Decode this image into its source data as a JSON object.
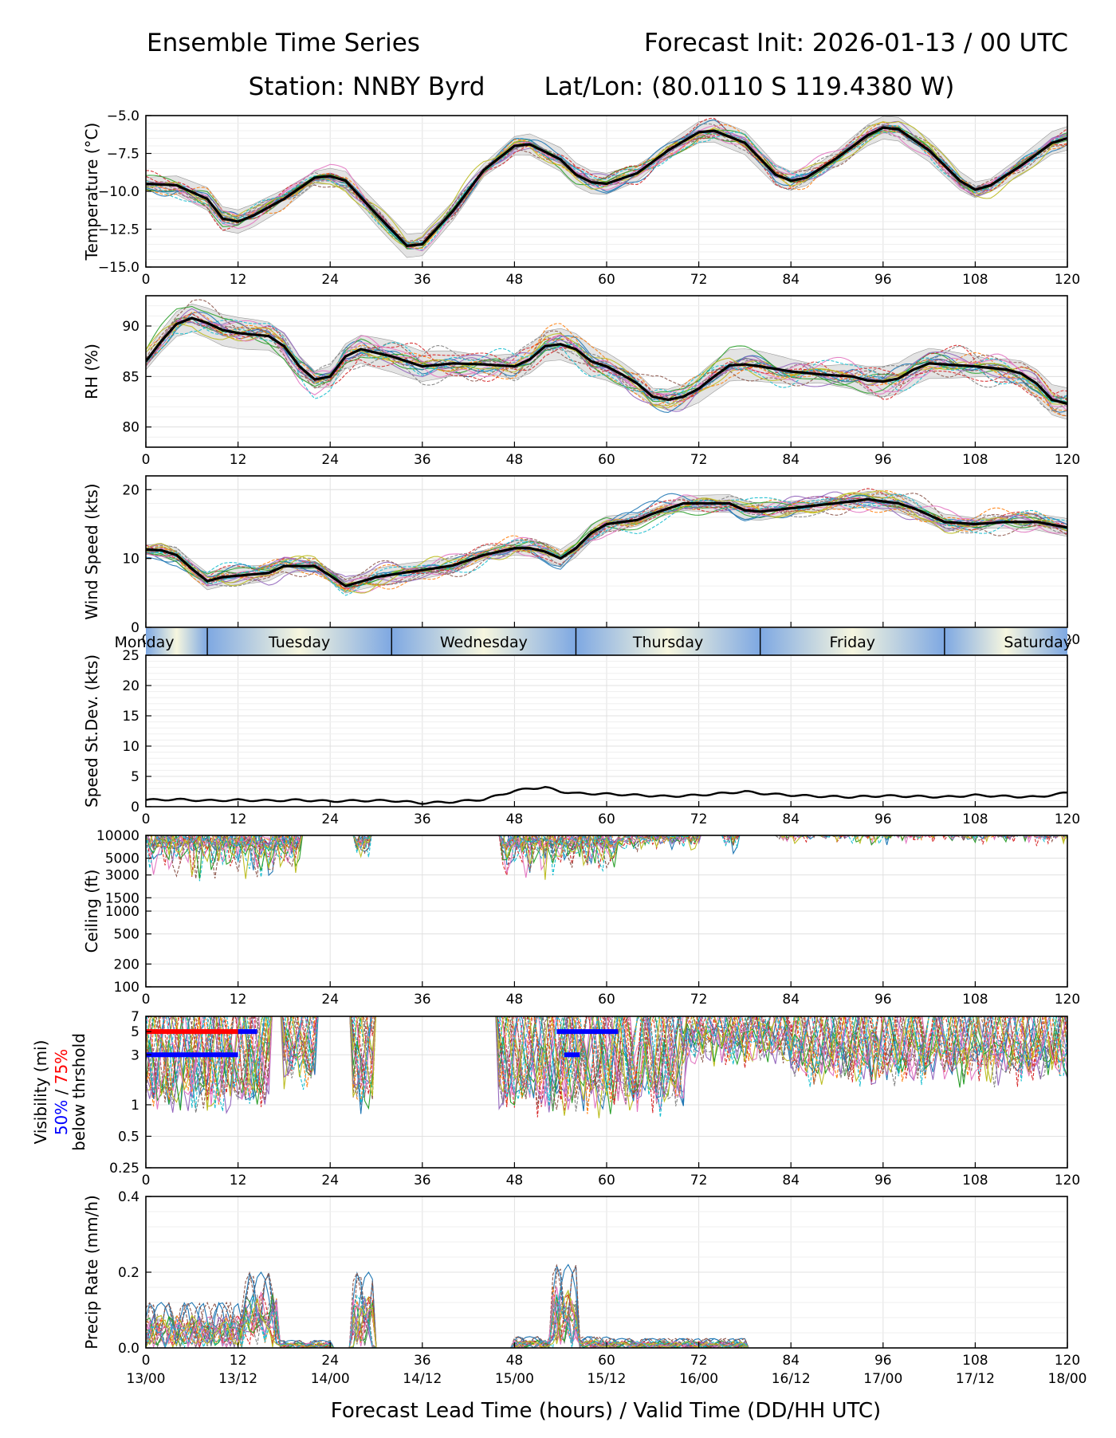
{
  "header": {
    "title_left": "Ensemble Time Series",
    "title_right": "Forecast Init: 2026-01-13 / 00 UTC",
    "station": "Station: NNBY Byrd",
    "latlon": "Lat/Lon: (80.0110 S 119.4380 W)"
  },
  "colors": {
    "mean": "#000000",
    "spread": "#d9d9d9",
    "grid": "#e0e0e0",
    "band_blue": "#8fb3e6",
    "band_cream": "#f7f7e0",
    "vis50": "#0000ff",
    "vis75": "#ff0000",
    "members": [
      "#1f77b4",
      "#ff7f0e",
      "#2ca02c",
      "#d62728",
      "#9467bd",
      "#8c564b",
      "#e377c2",
      "#7f7f7f",
      "#bcbd22",
      "#17becf"
    ]
  },
  "chart_data": [
    {
      "id": "temperature",
      "type": "line",
      "ylabel": "Temperature (°C)",
      "ylim": [
        -15.0,
        -5.0
      ],
      "yticks": [
        -15.0,
        -12.5,
        -10.0,
        -7.5,
        -5.0
      ],
      "ytick_labels": [
        "−15.0",
        "−12.5",
        "−10.0",
        "−7.5",
        "−5.0"
      ],
      "xlim": [
        0,
        120
      ],
      "xticks": [
        0,
        12,
        24,
        36,
        48,
        60,
        72,
        84,
        96,
        108,
        120
      ],
      "mean": {
        "x": [
          0,
          4,
          8,
          10,
          12,
          14,
          18,
          22,
          24,
          26,
          30,
          34,
          36,
          40,
          44,
          48,
          50,
          54,
          56,
          58,
          60,
          64,
          68,
          72,
          74,
          78,
          82,
          84,
          86,
          90,
          94,
          96,
          98,
          102,
          106,
          108,
          110,
          114,
          118,
          120
        ],
        "y": [
          -9.5,
          -9.6,
          -10.5,
          -11.8,
          -12.0,
          -11.6,
          -10.5,
          -9.1,
          -9.0,
          -9.3,
          -11.5,
          -13.6,
          -13.5,
          -11.3,
          -8.6,
          -7.0,
          -6.9,
          -7.9,
          -8.9,
          -9.4,
          -9.5,
          -8.8,
          -7.3,
          -6.1,
          -6.0,
          -6.8,
          -8.9,
          -9.3,
          -9.1,
          -7.8,
          -6.3,
          -5.8,
          -5.9,
          -7.3,
          -9.3,
          -9.9,
          -9.6,
          -8.3,
          -6.8,
          -6.5
        ]
      },
      "spread_halfwidth": 0.6,
      "member_count": 20
    },
    {
      "id": "rh",
      "type": "line",
      "ylabel": "RH (%)",
      "ylim": [
        78,
        93
      ],
      "yticks": [
        80,
        85,
        90
      ],
      "ytick_labels": [
        "80",
        "85",
        "90"
      ],
      "xlim": [
        0,
        120
      ],
      "xticks": [
        0,
        12,
        24,
        36,
        48,
        60,
        72,
        84,
        96,
        108,
        120
      ],
      "mean": {
        "x": [
          0,
          1,
          2,
          4,
          6,
          8,
          10,
          12,
          16,
          18,
          20,
          22,
          24,
          26,
          28,
          32,
          36,
          40,
          44,
          48,
          50,
          52,
          54,
          56,
          58,
          60,
          62,
          64,
          66,
          68,
          70,
          72,
          74,
          76,
          78,
          80,
          84,
          88,
          92,
          94,
          96,
          98,
          100,
          102,
          104,
          108,
          112,
          114,
          116,
          118,
          120
        ],
        "y": [
          86.5,
          87.5,
          88.5,
          90.2,
          90.8,
          90.3,
          89.6,
          89.3,
          89.0,
          88.0,
          86.0,
          84.7,
          85.0,
          87.0,
          87.7,
          87.0,
          86.0,
          86.3,
          86.2,
          86.0,
          86.7,
          88.0,
          88.2,
          87.7,
          86.5,
          86.0,
          85.2,
          84.3,
          83.0,
          82.7,
          83.0,
          83.8,
          85.0,
          86.1,
          86.2,
          86.0,
          85.5,
          85.2,
          85.0,
          84.6,
          84.5,
          84.8,
          85.7,
          86.3,
          86.2,
          86.0,
          85.7,
          85.3,
          84.3,
          82.7,
          82.3
        ]
      },
      "spread_halfwidth": 1.2,
      "member_count": 20
    },
    {
      "id": "wind_speed",
      "type": "line",
      "ylabel": "Wind Speed (kts)",
      "ylim": [
        0,
        22
      ],
      "yticks": [
        0,
        10,
        20
      ],
      "ytick_labels": [
        "0",
        "10",
        "20"
      ],
      "xlim": [
        0,
        120
      ],
      "xticks": [
        0,
        12,
        24,
        36,
        48,
        60,
        72,
        84,
        96,
        108,
        120
      ],
      "mean": {
        "x": [
          0,
          2,
          4,
          6,
          8,
          10,
          12,
          16,
          18,
          20,
          22,
          24,
          26,
          30,
          34,
          36,
          40,
          44,
          48,
          50,
          52,
          54,
          56,
          58,
          60,
          64,
          66,
          70,
          72,
          76,
          78,
          80,
          84,
          88,
          92,
          94,
          96,
          98,
          100,
          104,
          108,
          112,
          116,
          120
        ],
        "y": [
          11.3,
          11.2,
          10.5,
          8.5,
          6.7,
          7.3,
          7.5,
          7.9,
          8.9,
          8.9,
          8.9,
          7.5,
          6.0,
          7.3,
          8.0,
          8.3,
          9.0,
          10.5,
          11.5,
          11.5,
          11.0,
          10.0,
          11.5,
          13.7,
          15.0,
          15.6,
          16.5,
          18.0,
          18.0,
          18.0,
          17.0,
          16.8,
          17.3,
          17.8,
          18.3,
          18.6,
          18.3,
          18.0,
          17.3,
          15.3,
          15.0,
          15.3,
          15.3,
          14.5
        ]
      },
      "spread_halfwidth": 1.0,
      "member_count": 20
    },
    {
      "id": "day_band",
      "type": "other",
      "days": [
        "Monday",
        "Tuesday",
        "Wednesday",
        "Thursday",
        "Friday",
        "Saturday"
      ],
      "day_boundaries_hours": [
        8,
        32,
        56,
        80,
        104
      ]
    },
    {
      "id": "speed_stdev",
      "type": "line",
      "ylabel": "Speed St.Dev. (kts)",
      "ylim": [
        0,
        25
      ],
      "yticks": [
        0,
        5,
        10,
        15,
        20,
        25
      ],
      "ytick_labels": [
        "0",
        "5",
        "10",
        "15",
        "20",
        "25"
      ],
      "xlim": [
        0,
        120
      ],
      "xticks": [
        0,
        12,
        24,
        36,
        48,
        60,
        72,
        84,
        96,
        108,
        120
      ],
      "mean": {
        "x": [
          0,
          4,
          8,
          12,
          16,
          20,
          24,
          28,
          32,
          36,
          40,
          44,
          48,
          50,
          52,
          54,
          56,
          60,
          64,
          68,
          72,
          76,
          78,
          80,
          84,
          88,
          92,
          96,
          100,
          104,
          108,
          112,
          116,
          120
        ],
        "y": [
          1.1,
          1.2,
          1.0,
          1.1,
          1.0,
          1.1,
          0.9,
          1.0,
          1.0,
          0.6,
          0.8,
          1.2,
          2.6,
          3.0,
          3.2,
          2.5,
          2.2,
          2.1,
          1.9,
          1.7,
          1.9,
          2.3,
          2.5,
          2.2,
          1.9,
          1.7,
          1.6,
          1.8,
          1.7,
          1.6,
          1.9,
          1.7,
          1.6,
          2.3
        ]
      }
    },
    {
      "id": "ceiling",
      "type": "line",
      "ylabel": "Ceiling (ft)",
      "yscale": "log",
      "ylim": [
        100,
        10000
      ],
      "yticks": [
        100,
        200,
        500,
        1000,
        1500,
        3000,
        5000,
        10000
      ],
      "ytick_labels": [
        "100",
        "200",
        "500",
        "1000",
        "1500",
        "3000",
        "5000",
        "10000"
      ],
      "xlim": [
        0,
        120
      ],
      "xticks": [
        0,
        12,
        24,
        36,
        48,
        60,
        72,
        84,
        96,
        108,
        120
      ],
      "member_count": 20
    },
    {
      "id": "visibility",
      "type": "line",
      "ylabel": "Visibility (mi)",
      "ylabel_50": "50%",
      "ylabel_sep": " / ",
      "ylabel_75": "75%",
      "ylabel_suffix": "below thrshold",
      "yscale": "log",
      "ylim": [
        0.25,
        7
      ],
      "yticks": [
        0.25,
        0.5,
        1,
        3,
        5,
        7
      ],
      "ytick_labels": [
        "0.25",
        "0.5",
        "1",
        "3",
        "5",
        "7"
      ],
      "xlim": [
        0,
        120
      ],
      "xticks": [
        0,
        12,
        24,
        36,
        48,
        60,
        72,
        84,
        96,
        108,
        120
      ],
      "member_count": 20,
      "threshold_bars": [
        {
          "pct": 75,
          "threshold_mi": 5,
          "start_hr": 0,
          "end_hr": 12
        },
        {
          "pct": 50,
          "threshold_mi": 5,
          "start_hr": 12,
          "end_hr": 14.5
        },
        {
          "pct": 50,
          "threshold_mi": 5,
          "start_hr": 53.5,
          "end_hr": 61.5
        },
        {
          "pct": 50,
          "threshold_mi": 3,
          "start_hr": 0,
          "end_hr": 12
        },
        {
          "pct": 50,
          "threshold_mi": 3,
          "start_hr": 54.5,
          "end_hr": 56.5
        }
      ]
    },
    {
      "id": "precip_rate",
      "type": "line",
      "ylabel": "Precip Rate (mm/h)",
      "ylim": [
        0.0,
        0.4
      ],
      "yticks": [
        0.0,
        0.2,
        0.4
      ],
      "ytick_labels": [
        "0.0",
        "0.2",
        "0.4"
      ],
      "xlim": [
        0,
        120
      ],
      "xticks": [
        0,
        12,
        24,
        36,
        48,
        60,
        72,
        84,
        96,
        108,
        120
      ],
      "valid_time_labels": [
        "13/00",
        "13/12",
        "14/00",
        "14/12",
        "15/00",
        "15/12",
        "16/00",
        "16/12",
        "17/00",
        "17/12",
        "18/00"
      ],
      "xlabel": "Forecast Lead Time (hours) / Valid Time (DD/HH UTC)",
      "member_count": 20
    }
  ]
}
